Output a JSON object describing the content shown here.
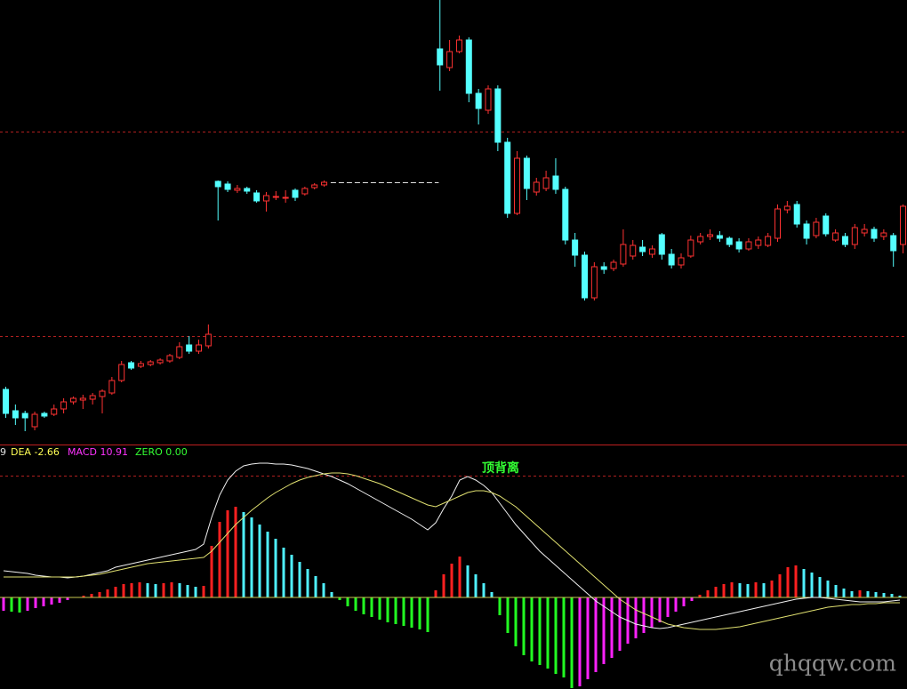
{
  "chart_data": [
    {
      "type": "candlestick",
      "up_color": "#ff3232",
      "down_color": "#54ffff",
      "ylim": [
        0,
        50
      ],
      "grid_levels": [
        12.2,
        35.2
      ],
      "grid_color": "#b02020",
      "candles": [
        [
          6.2,
          6.5,
          3.0,
          3.5
        ],
        [
          3.8,
          4.5,
          2.2,
          3.0
        ],
        [
          3.5,
          3.8,
          1.5,
          3.0
        ],
        [
          2.0,
          3.7,
          1.6,
          3.4
        ],
        [
          3.5,
          3.7,
          3.0,
          3.2
        ],
        [
          3.4,
          4.5,
          3.2,
          4.0
        ],
        [
          4.0,
          5.2,
          3.5,
          4.8
        ],
        [
          4.8,
          5.4,
          4.5,
          5.2
        ],
        [
          5.0,
          5.6,
          4.0,
          5.2
        ],
        [
          5.1,
          5.8,
          4.5,
          5.5
        ],
        [
          5.4,
          6.2,
          3.5,
          6.0
        ],
        [
          5.8,
          7.6,
          5.6,
          7.2
        ],
        [
          7.2,
          9.4,
          7.0,
          9.0
        ],
        [
          9.2,
          9.4,
          8.4,
          8.6
        ],
        [
          8.8,
          9.4,
          8.6,
          9.1
        ],
        [
          9.0,
          9.5,
          8.8,
          9.3
        ],
        [
          9.2,
          9.7,
          9.0,
          9.5
        ],
        [
          9.4,
          10.2,
          9.2,
          10.0
        ],
        [
          9.8,
          11.5,
          9.6,
          11.0
        ],
        [
          11.2,
          12.2,
          10.2,
          10.5
        ],
        [
          10.5,
          11.8,
          10.2,
          11.2
        ],
        [
          11.1,
          13.5,
          10.8,
          12.4
        ],
        [
          29.6,
          29.7,
          25.2,
          29.0
        ],
        [
          29.3,
          29.6,
          28.4,
          28.7
        ],
        [
          28.6,
          29.2,
          28.3,
          28.8
        ],
        [
          28.8,
          29.0,
          28.2,
          28.5
        ],
        [
          28.3,
          28.6,
          27.2,
          27.4
        ],
        [
          27.4,
          28.4,
          26.2,
          28.0
        ],
        [
          27.8,
          28.5,
          27.5,
          27.9
        ],
        [
          27.7,
          28.6,
          27.2,
          27.8
        ],
        [
          28.6,
          28.8,
          27.4,
          27.8
        ],
        [
          28.2,
          29.0,
          28.0,
          28.8
        ],
        [
          28.9,
          29.4,
          28.7,
          29.2
        ],
        [
          29.2,
          29.7,
          29.0,
          29.5
        ],
        null,
        null,
        null,
        null,
        null,
        null,
        null,
        null,
        null,
        null,
        null,
        [
          44.5,
          50,
          39.8,
          42.7
        ],
        [
          42.4,
          45.5,
          42.0,
          44.2
        ],
        [
          44.2,
          46.0,
          44.0,
          45.5
        ],
        [
          45.5,
          45.8,
          38.5,
          39.5
        ],
        [
          39.5,
          40.0,
          36.0,
          37.8
        ],
        [
          37.6,
          40.4,
          37.2,
          40.0
        ],
        [
          40.0,
          40.4,
          33.0,
          34.0
        ],
        [
          34.0,
          34.5,
          25.5,
          26.0
        ],
        [
          26.0,
          33.0,
          25.8,
          32.2
        ],
        [
          32.2,
          32.5,
          27.5,
          28.8
        ],
        [
          28.4,
          30.0,
          28.0,
          29.5
        ],
        [
          28.8,
          30.8,
          28.5,
          30.0
        ],
        [
          30.2,
          32.2,
          28.2,
          28.7
        ],
        [
          28.7,
          29.0,
          22.5,
          23.0
        ],
        [
          23.0,
          23.8,
          20.0,
          21.3
        ],
        [
          21.3,
          21.7,
          16.2,
          16.5
        ],
        [
          16.5,
          20.5,
          16.2,
          20.0
        ],
        [
          20.0,
          20.5,
          19.2,
          19.7
        ],
        [
          19.8,
          20.8,
          19.5,
          20.5
        ],
        [
          20.3,
          24.2,
          20.0,
          22.5
        ],
        [
          21.2,
          23.0,
          20.8,
          22.4
        ],
        [
          22.2,
          23.0,
          21.2,
          21.7
        ],
        [
          21.4,
          22.4,
          21.0,
          22.0
        ],
        [
          23.6,
          23.8,
          20.8,
          21.4
        ],
        [
          21.4,
          22.0,
          19.8,
          20.2
        ],
        [
          20.2,
          21.5,
          19.8,
          21.0
        ],
        [
          21.2,
          23.5,
          21.0,
          23.0
        ],
        [
          22.8,
          23.8,
          22.5,
          23.4
        ],
        [
          23.4,
          24.2,
          23.0,
          23.6
        ],
        [
          23.5,
          24.0,
          22.8,
          23.2
        ],
        [
          23.2,
          23.4,
          22.2,
          22.5
        ],
        [
          22.8,
          23.2,
          21.6,
          22.0
        ],
        [
          22.0,
          23.2,
          21.8,
          22.8
        ],
        [
          22.4,
          23.4,
          22.0,
          23.0
        ],
        [
          22.4,
          23.8,
          22.2,
          23.4
        ],
        [
          23.2,
          27.0,
          22.8,
          26.5
        ],
        [
          26.4,
          27.4,
          26.0,
          26.8
        ],
        [
          27.0,
          27.4,
          24.4,
          24.8
        ],
        [
          24.8,
          25.2,
          22.5,
          23.2
        ],
        [
          23.5,
          25.5,
          23.2,
          25.0
        ],
        [
          25.7,
          26.0,
          23.4,
          23.7
        ],
        [
          23.0,
          24.2,
          22.8,
          23.8
        ],
        [
          23.4,
          23.8,
          22.2,
          22.5
        ],
        [
          22.5,
          24.8,
          22.0,
          24.4
        ],
        [
          23.8,
          24.8,
          23.4,
          24.2
        ],
        [
          24.2,
          24.5,
          22.8,
          23.2
        ],
        [
          23.4,
          24.2,
          23.0,
          23.8
        ],
        [
          23.5,
          23.8,
          20.0,
          21.8
        ],
        [
          22.5,
          27.0,
          21.5,
          26.8
        ]
      ]
    },
    {
      "type": "macd",
      "ylim": [
        -10.3,
        17.2
      ],
      "grid_levels": [
        13.7
      ],
      "grid_color": "#b02020",
      "zero_color": "#c8c850",
      "legend": [
        {
          "text": "9",
          "color": "#e0e0e0"
        },
        {
          "text": "DEA -2.66",
          "color": "#ffff55"
        },
        {
          "text": "MACD 10.91",
          "color": "#ff33ff"
        },
        {
          "text": "ZERO 0.00",
          "color": "#33ff33"
        }
      ],
      "annotation": {
        "text": "顶背离",
        "color": "#33ff33"
      },
      "histogram_colors": {
        "pos_rising": "#ff2020",
        "pos_falling": "#4ff0ff",
        "neg_falling": "#22ff22",
        "neg_rising": "#ff22ff"
      },
      "histogram": [
        -1.5,
        -1.6,
        -1.7,
        -1.5,
        -1.2,
        -1.0,
        -0.8,
        -0.6,
        -0.3,
        0.05,
        0.2,
        0.4,
        0.6,
        0.9,
        1.2,
        1.5,
        1.6,
        1.7,
        1.6,
        1.5,
        1.6,
        1.7,
        1.6,
        1.4,
        1.2,
        1.3,
        5.8,
        8.5,
        9.8,
        10.2,
        9.6,
        9.0,
        8.2,
        7.4,
        6.6,
        5.6,
        4.8,
        4.0,
        3.2,
        2.4,
        1.6,
        0.6,
        -0.3,
        -1.0,
        -1.5,
        -1.9,
        -2.2,
        -2.5,
        -2.8,
        -3.0,
        -3.2,
        -3.4,
        -3.6,
        -3.9,
        0.8,
        2.6,
        3.8,
        4.6,
        3.6,
        2.6,
        1.6,
        0.6,
        -2.0,
        -4.0,
        -5.5,
        -6.5,
        -7.2,
        -7.6,
        -8.0,
        -8.6,
        -9.0,
        -10.2,
        -10.0,
        -9.2,
        -8.4,
        -7.5,
        -6.8,
        -6.0,
        -5.2,
        -4.6,
        -4.0,
        -3.4,
        -2.8,
        -2.2,
        -1.6,
        -1.0,
        -0.4,
        0.3,
        0.8,
        1.2,
        1.5,
        1.7,
        1.6,
        1.5,
        1.7,
        1.6,
        1.9,
        2.6,
        3.4,
        3.6,
        3.2,
        2.8,
        2.3,
        1.9,
        1.4,
        1.0,
        0.7,
        0.8,
        0.7,
        0.6,
        0.5,
        0.4,
        0.2
      ],
      "lines": [
        {
          "color": "#f0f0f0",
          "values": [
            3.0,
            2.9,
            2.8,
            2.7,
            2.5,
            2.4,
            2.3,
            2.3,
            2.2,
            2.3,
            2.4,
            2.6,
            2.8,
            3.0,
            3.4,
            3.6,
            3.8,
            4.0,
            4.2,
            4.4,
            4.6,
            4.8,
            5.0,
            5.2,
            5.4,
            6.0,
            9.0,
            11.5,
            13.2,
            14.2,
            14.8,
            15.0,
            15.1,
            15.1,
            15.0,
            15.0,
            14.9,
            14.7,
            14.5,
            14.2,
            13.9,
            13.6,
            13.2,
            12.8,
            12.3,
            11.8,
            11.3,
            10.8,
            10.3,
            9.8,
            9.3,
            8.8,
            8.2,
            7.6,
            8.4,
            10.0,
            11.4,
            13.2,
            13.6,
            13.2,
            12.6,
            11.8,
            10.6,
            9.4,
            8.2,
            7.2,
            6.2,
            5.2,
            4.4,
            3.6,
            2.8,
            2.0,
            1.2,
            0.4,
            -0.4,
            -1.0,
            -1.6,
            -2.2,
            -2.6,
            -3.0,
            -3.2,
            -3.4,
            -3.5,
            -3.4,
            -3.2,
            -3.0,
            -2.8,
            -2.6,
            -2.4,
            -2.2,
            -2.0,
            -1.8,
            -1.6,
            -1.4,
            -1.2,
            -1.0,
            -0.8,
            -0.6,
            -0.4,
            -0.2,
            -0.1,
            0.0,
            0.0,
            -0.1,
            -0.2,
            -0.3,
            -0.4,
            -0.5,
            -0.5,
            -0.5,
            -0.5,
            -0.4,
            -0.3
          ]
        },
        {
          "color": "#e0e070",
          "values": [
            2.3,
            2.3,
            2.3,
            2.3,
            2.3,
            2.3,
            2.3,
            2.3,
            2.3,
            2.3,
            2.4,
            2.5,
            2.6,
            2.8,
            3.0,
            3.2,
            3.4,
            3.6,
            3.8,
            3.9,
            4.0,
            4.1,
            4.2,
            4.3,
            4.4,
            4.5,
            5.2,
            6.2,
            7.2,
            8.2,
            9.0,
            9.8,
            10.5,
            11.2,
            11.8,
            12.3,
            12.8,
            13.2,
            13.5,
            13.7,
            13.9,
            14.0,
            14.0,
            13.9,
            13.7,
            13.4,
            13.1,
            12.8,
            12.4,
            12.0,
            11.6,
            11.2,
            10.8,
            10.4,
            10.2,
            10.6,
            11.0,
            11.4,
            11.8,
            12.0,
            12.0,
            11.8,
            11.4,
            10.8,
            10.2,
            9.4,
            8.6,
            7.8,
            7.0,
            6.2,
            5.4,
            4.6,
            3.8,
            3.0,
            2.2,
            1.4,
            0.6,
            -0.2,
            -0.8,
            -1.4,
            -1.8,
            -2.2,
            -2.6,
            -3.0,
            -3.2,
            -3.4,
            -3.5,
            -3.6,
            -3.6,
            -3.6,
            -3.5,
            -3.4,
            -3.3,
            -3.1,
            -2.9,
            -2.7,
            -2.5,
            -2.3,
            -2.1,
            -1.9,
            -1.7,
            -1.5,
            -1.3,
            -1.1,
            -1.0,
            -0.9,
            -0.8,
            -0.8,
            -0.7,
            -0.7,
            -0.6,
            -0.6,
            -0.6
          ]
        }
      ]
    }
  ],
  "watermark": "qhqqw.com"
}
